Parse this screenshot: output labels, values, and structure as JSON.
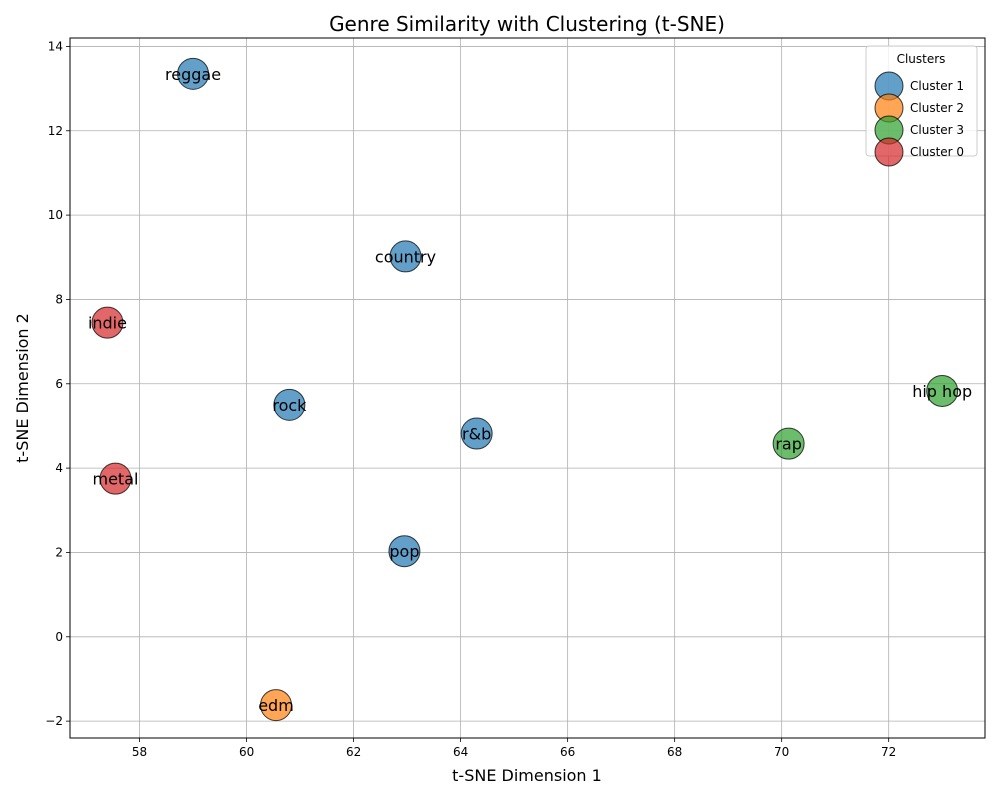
{
  "chart_data": {
    "type": "scatter",
    "title": "Genre Similarity with Clustering (t-SNE)",
    "xlabel": "t-SNE Dimension 1",
    "ylabel": "t-SNE Dimension 2",
    "xlim": [
      56.7,
      73.8
    ],
    "ylim": [
      -2.4,
      14.2
    ],
    "xticks": [
      58,
      60,
      62,
      64,
      66,
      68,
      70,
      72
    ],
    "yticks": [
      -2,
      0,
      2,
      4,
      6,
      8,
      10,
      12,
      14
    ],
    "grid": true,
    "legend": {
      "title": "Clusters",
      "position": "top-right",
      "entries": [
        "Cluster 1",
        "Cluster 2",
        "Cluster 3",
        "Cluster 0"
      ]
    },
    "series": [
      {
        "name": "Cluster 1",
        "color": "#1f77b4",
        "points": [
          {
            "label": "reggae",
            "x": 59.0,
            "y": 13.35
          },
          {
            "label": "country",
            "x": 62.97,
            "y": 9.02
          },
          {
            "label": "rock",
            "x": 60.8,
            "y": 5.5
          },
          {
            "label": "r&b",
            "x": 64.3,
            "y": 4.82
          },
          {
            "label": "pop",
            "x": 62.95,
            "y": 2.03
          }
        ]
      },
      {
        "name": "Cluster 2",
        "color": "#ff7f0e",
        "points": [
          {
            "label": "edm",
            "x": 60.55,
            "y": -1.62
          }
        ]
      },
      {
        "name": "Cluster 3",
        "color": "#2ca02c",
        "points": [
          {
            "label": "rap",
            "x": 70.13,
            "y": 4.58
          },
          {
            "label": "hip hop",
            "x": 73.0,
            "y": 5.83
          }
        ]
      },
      {
        "name": "Cluster 0",
        "color": "#d62728",
        "points": [
          {
            "label": "indie",
            "x": 57.4,
            "y": 7.45
          },
          {
            "label": "metal",
            "x": 57.55,
            "y": 3.75
          }
        ]
      }
    ]
  }
}
